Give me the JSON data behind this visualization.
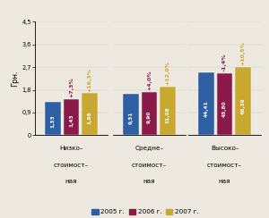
{
  "groups": [
    {
      "label": "Низко–\nстоимост–\nная",
      "values": [
        1.33,
        1.43,
        1.66
      ],
      "pct_labels": [
        "+7,3%",
        "+16,3%"
      ],
      "ylim": [
        0,
        4.5
      ],
      "yticks": [
        0,
        0.9,
        1.8,
        2.7,
        3.6,
        4.5
      ]
    },
    {
      "label": "Средне–\nстоимост–\nная",
      "values": [
        9.51,
        9.9,
        11.08
      ],
      "pct_labels": [
        "+4,0%",
        "+12,0%"
      ],
      "ylim": [
        0,
        26
      ],
      "yticks": [
        0,
        5.2,
        10.4,
        15.6,
        20.8,
        26
      ]
    },
    {
      "label": "Высоко–\nстоимост–\nная",
      "values": [
        44.41,
        43.8,
        48.39
      ],
      "pct_labels": [
        "–1,4%",
        "+10,5%"
      ],
      "ylim": [
        0,
        80
      ],
      "yticks": [
        0,
        16,
        32,
        48,
        64,
        80
      ]
    }
  ],
  "bar_colors": [
    "#2e5fa3",
    "#8b1a4a",
    "#c8a830"
  ],
  "legend_labels": [
    "2005 г.",
    "2006 г.",
    "2007 г."
  ],
  "ylabel": "Грн.",
  "bar_width": 0.18,
  "background_color": "#ede8e0"
}
